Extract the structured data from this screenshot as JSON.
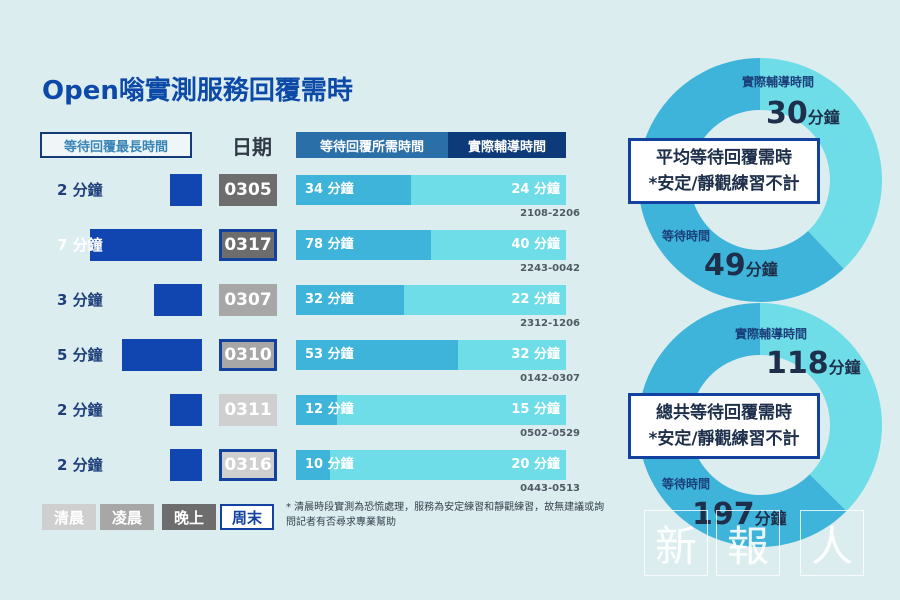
{
  "title": "Open嗡實測服務回覆需時",
  "headers": {
    "wait_max": "等待回覆最長時間",
    "date": "日期",
    "need": "等待回覆所需時間",
    "actual": "實際輔導時間"
  },
  "rows": [
    {
      "wait_label": "2 分鐘",
      "wait_max_min": 2,
      "date": "0305",
      "period": "晚上",
      "need_label": "34 分鐘",
      "need_min": 34,
      "actual_label": "24 分鐘",
      "actual_min": 24,
      "range": "2108-2206"
    },
    {
      "wait_label": "7 分鐘",
      "wait_max_min": 7,
      "date": "0317",
      "period": "晚上+周末",
      "need_label": "78 分鐘",
      "need_min": 78,
      "actual_label": "40 分鐘",
      "actual_min": 40,
      "range": "2243-0042"
    },
    {
      "wait_label": "3 分鐘",
      "wait_max_min": 3,
      "date": "0307",
      "period": "凌晨",
      "need_label": "32 分鐘",
      "need_min": 32,
      "actual_label": "22 分鐘",
      "actual_min": 22,
      "range": "2312-1206"
    },
    {
      "wait_label": "5 分鐘",
      "wait_max_min": 5,
      "date": "0310",
      "period": "凌晨+周末",
      "need_label": "53 分鐘",
      "need_min": 53,
      "actual_label": "32 分鐘",
      "actual_min": 32,
      "range": "0142-0307"
    },
    {
      "wait_label": "2 分鐘",
      "wait_max_min": 2,
      "date": "0311",
      "period": "清晨",
      "need_label": "12 分鐘",
      "need_min": 12,
      "actual_label": "15 分鐘",
      "actual_min": 15,
      "range": "0502-0529"
    },
    {
      "wait_label": "2 分鐘",
      "wait_max_min": 2,
      "date": "0316",
      "period": "清晨+周末",
      "need_label": "10 分鐘",
      "need_min": 10,
      "actual_label": "20 分鐘",
      "actual_min": 20,
      "range": "0443-0513"
    }
  ],
  "legend": [
    {
      "label": "清晨",
      "color": "#cfcfcf"
    },
    {
      "label": "凌晨",
      "color": "#a7a7a7"
    },
    {
      "label": "晚上",
      "color": "#6d6d6d"
    },
    {
      "label": "周末",
      "color": "#ffffff",
      "border": "#1241a0",
      "text_color": "#1241a0"
    }
  ],
  "note": "* 清晨時段實測為恐慌處理，服務為安定練習和靜觀練習，故無建議或詢問記者有否尋求專業幫助",
  "donuts": [
    {
      "actual_label": "實際輔導時間",
      "actual_value": "30",
      "unit": "分鐘",
      "wait_label": "等待時間",
      "wait_value": "49",
      "box_line1": "平均等待回覆需時",
      "box_line2": "*安定/靜觀練習不計",
      "slices": [
        {
          "name": "等待時間",
          "value": 49,
          "color": "#3fb4da"
        },
        {
          "name": "實際輔導時間",
          "value": 30,
          "color": "#6fdde8"
        }
      ]
    },
    {
      "actual_label": "實際輔導時間",
      "actual_value": "118",
      "unit": "分鐘",
      "wait_label": "等待時間",
      "wait_value": "197",
      "box_line1": "總共等待回覆需時",
      "box_line2": "*安定/靜觀練習不計",
      "slices": [
        {
          "name": "等待時間",
          "value": 197,
          "color": "#3fb4da"
        },
        {
          "name": "實際輔導時間",
          "value": 118,
          "color": "#6fdde8"
        }
      ]
    }
  ],
  "watermark": [
    "新",
    "報",
    "人"
  ],
  "colors": {
    "wait_bar": "#1146b0",
    "need_bar": "#3fb4da",
    "actual_bar": "#6fdde8",
    "weekend_border": "#1241a0"
  },
  "chart_data": {
    "type": "bar",
    "categories": [
      "0305",
      "0317",
      "0307",
      "0310",
      "0311",
      "0316"
    ],
    "series": [
      {
        "name": "等待回覆最長時間",
        "values": [
          2,
          7,
          3,
          5,
          2,
          2
        ]
      },
      {
        "name": "等待回覆所需時間",
        "values": [
          34,
          78,
          32,
          53,
          12,
          10
        ]
      },
      {
        "name": "實際輔導時間",
        "values": [
          24,
          40,
          22,
          32,
          15,
          20
        ]
      }
    ],
    "title": "Open嗡實測服務回覆需時",
    "unit": "分鐘"
  }
}
